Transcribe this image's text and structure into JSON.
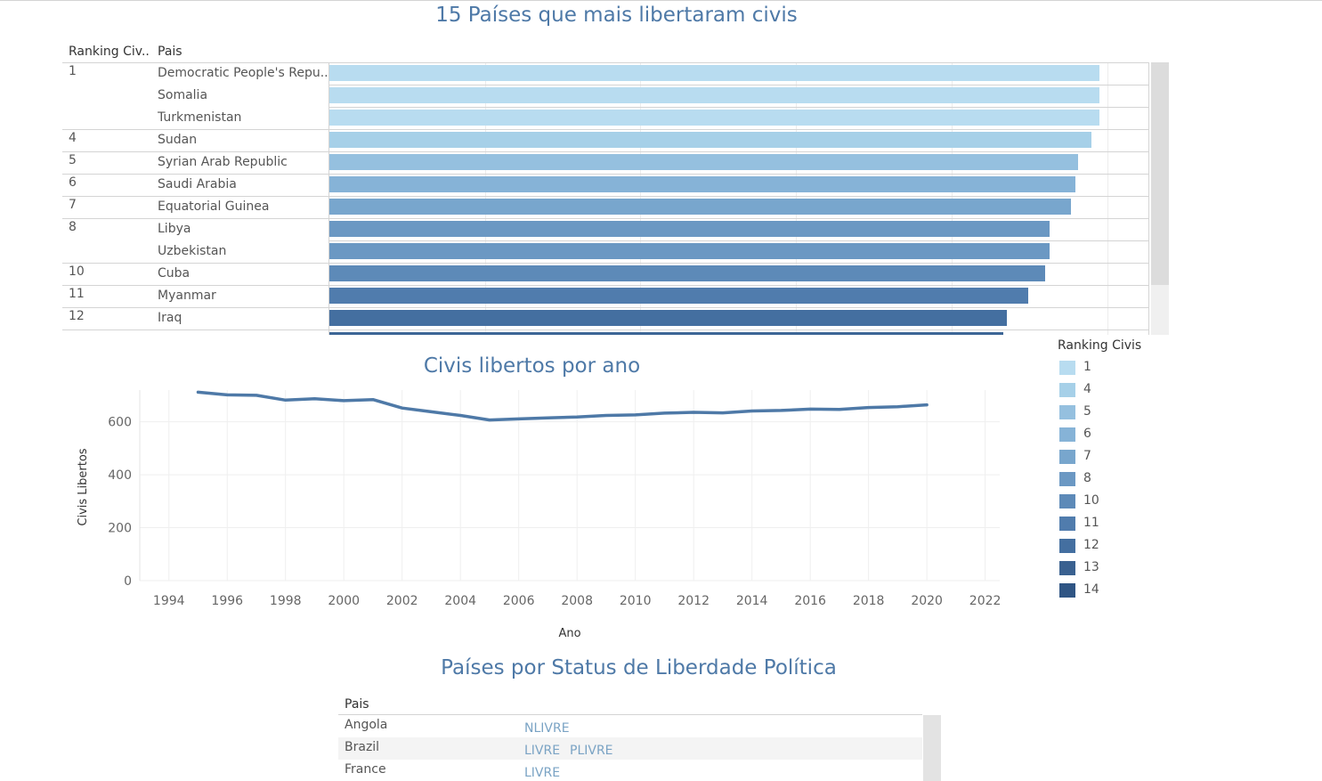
{
  "bar_chart": {
    "title": "15 Países que mais libertaram civis",
    "header_rank": "Ranking Civ..",
    "header_country": "Pais",
    "rows": [
      {
        "rank": "1",
        "country": "Democratic People's Repu..",
        "value": 99,
        "color": "#b8dcf0"
      },
      {
        "rank": "",
        "country": "Somalia",
        "value": 99,
        "color": "#b8dcf0"
      },
      {
        "rank": "",
        "country": "Turkmenistan",
        "value": 99,
        "color": "#b8dcf0"
      },
      {
        "rank": "4",
        "country": "Sudan",
        "value": 98,
        "color": "#a6d0e8"
      },
      {
        "rank": "5",
        "country": "Syrian Arab Republic",
        "value": 96.3,
        "color": "#95c0df"
      },
      {
        "rank": "6",
        "country": "Saudi Arabia",
        "value": 95.9,
        "color": "#86b3d7"
      },
      {
        "rank": "7",
        "country": "Equatorial Guinea",
        "value": 95.3,
        "color": "#78a6cd"
      },
      {
        "rank": "8",
        "country": "Libya",
        "value": 92.6,
        "color": "#6b98c3"
      },
      {
        "rank": "",
        "country": "Uzbekistan",
        "value": 92.6,
        "color": "#6b98c3"
      },
      {
        "rank": "10",
        "country": "Cuba",
        "value": 92,
        "color": "#5d8ab8"
      },
      {
        "rank": "11",
        "country": "Myanmar",
        "value": 89.8,
        "color": "#507cad"
      },
      {
        "rank": "12",
        "country": "Iraq",
        "value": 87.1,
        "color": "#446fa0"
      },
      {
        "rank": "",
        "country": "",
        "value": 86.6,
        "color": "#3d6696"
      }
    ],
    "rank_group_starts": [
      0,
      3,
      4,
      5,
      6,
      7,
      9,
      10,
      11,
      12
    ]
  },
  "legend": {
    "title": "Ranking Civis",
    "items": [
      {
        "label": "1",
        "color": "#b8dcf0"
      },
      {
        "label": "4",
        "color": "#a6d0e8"
      },
      {
        "label": "5",
        "color": "#95c0df"
      },
      {
        "label": "6",
        "color": "#86b3d7"
      },
      {
        "label": "7",
        "color": "#78a6cd"
      },
      {
        "label": "8",
        "color": "#6b98c3"
      },
      {
        "label": "10",
        "color": "#5d8ab8"
      },
      {
        "label": "11",
        "color": "#507cad"
      },
      {
        "label": "12",
        "color": "#446fa0"
      },
      {
        "label": "13",
        "color": "#3a6190"
      },
      {
        "label": "14",
        "color": "#2f5584"
      }
    ]
  },
  "chart_data": {
    "type": "line",
    "title": "Civis libertos por ano",
    "xlabel": "Ano",
    "ylabel": "Civis Libertos",
    "x_ticks": [
      1994,
      1996,
      1998,
      2000,
      2002,
      2004,
      2006,
      2008,
      2010,
      2012,
      2014,
      2016,
      2018,
      2020,
      2022
    ],
    "y_ticks": [
      0,
      200,
      400,
      600
    ],
    "xlim": [
      1993,
      2022.5
    ],
    "ylim": [
      0,
      720
    ],
    "grid": true,
    "color": "#4e79a7",
    "x": [
      1995,
      1996,
      1997,
      1998,
      1999,
      2000,
      2001,
      2002,
      2003,
      2004,
      2005,
      2006,
      2007,
      2008,
      2009,
      2010,
      2011,
      2012,
      2013,
      2014,
      2015,
      2016,
      2017,
      2018,
      2019,
      2020
    ],
    "y": [
      712,
      702,
      700,
      682,
      687,
      680,
      684,
      652,
      638,
      624,
      607,
      611,
      615,
      618,
      624,
      626,
      633,
      636,
      634,
      641,
      643,
      648,
      647,
      654,
      657,
      664
    ]
  },
  "status_table": {
    "title": "Países por Status de Liberdade Política",
    "header_country": "Pais",
    "rows": [
      {
        "country": "Angola",
        "statuses": [
          "NLIVRE"
        ]
      },
      {
        "country": "Brazil",
        "statuses": [
          "LIVRE",
          "PLIVRE"
        ]
      },
      {
        "country": "France",
        "statuses": [
          "LIVRE"
        ]
      }
    ]
  }
}
